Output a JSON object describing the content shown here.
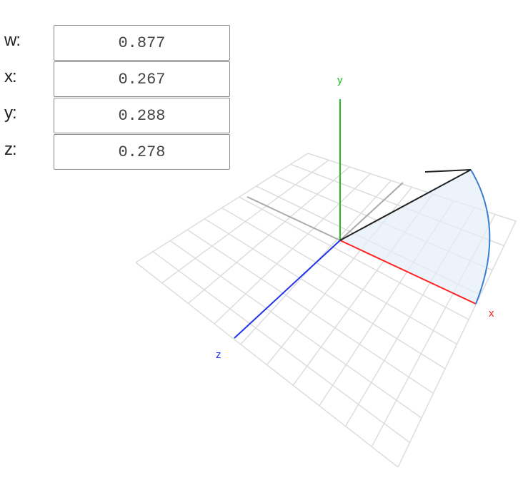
{
  "quaternion": {
    "fields": [
      {
        "key": "w",
        "label": "w:",
        "value": "0.877"
      },
      {
        "key": "x",
        "label": "x:",
        "value": "0.267"
      },
      {
        "key": "y",
        "label": "y:",
        "value": "0.288"
      },
      {
        "key": "z",
        "label": "z:",
        "value": "0.278"
      }
    ]
  },
  "scene": {
    "axes": {
      "x": {
        "label": "x",
        "color": "#ff2222"
      },
      "y": {
        "label": "y",
        "color": "#22bb22"
      },
      "z": {
        "label": "z",
        "color": "#2233ee"
      }
    },
    "grid_color": "#dddddd",
    "arc_color": "#3a7fd0",
    "arc_fill_color": "#e4eef8",
    "rotation_vector_color": "#222222",
    "inverse_axes_color": "#aaaaaa"
  }
}
